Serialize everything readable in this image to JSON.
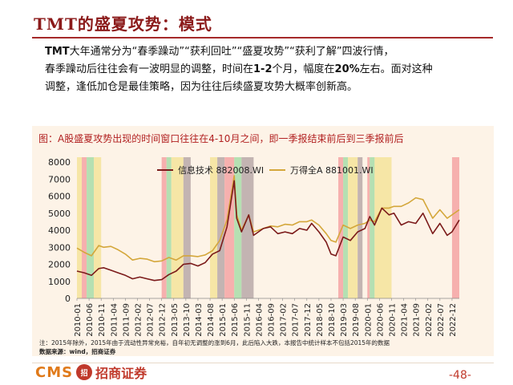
{
  "title": "TMT的盛夏攻势：模式",
  "body": {
    "p1_prefix": "TMT",
    "p1_rest": "大年通常分为“春季躁动”“获利回吐”“盛夏攻势”“获利了解”四波行情，",
    "p2_a": "春季躁动后往往会有一波明显的调整，时间在",
    "p2_b": "1-2",
    "p2_c": "个月，幅度在",
    "p2_d": "20%",
    "p2_e": "左右。面对这种",
    "p3": "调整，逢低加仓是最佳策略，因为往往后续盛夏攻势大概率创新高。"
  },
  "caption": "图：A股盛夏攻势出现的时间窗口往往在4-10月之间，即一季报结束前后到三季报前后",
  "footnote": "注：2015年除外，2015年由于流动性异常充裕，自年初无调整的涨到6月，此后陷入大跌，本报告中统计样本不包括2015年的数据",
  "source": "数据来源：wind，招商证券",
  "logo": {
    "brand": "CMS",
    "mark": "招",
    "name": "招商证券"
  },
  "page_number": "-48-",
  "colors": {
    "series1": "#7b1a1a",
    "series2": "#d4a73b",
    "band_red": "#f4a3a3",
    "band_green": "#a8dca8",
    "band_yellow": "#f5e39a",
    "band_gray": "#b8a8a8",
    "background": "#fdf3e7"
  },
  "chart_data": {
    "type": "line",
    "ylim": [
      0,
      8000
    ],
    "yticks": [
      0,
      1000,
      2000,
      3000,
      4000,
      5000,
      6000,
      7000,
      8000
    ],
    "xticks": [
      "2010-01",
      "2010-06",
      "2010-11",
      "2011-04",
      "2011-09",
      "2012-02",
      "2012-07",
      "2012-12",
      "2013-05",
      "2013-10",
      "2014-03",
      "2014-08",
      "2015-01",
      "2015-06",
      "2015-11",
      "2016-04",
      "2016-09",
      "2017-02",
      "2017-07",
      "2017-12",
      "2018-05",
      "2018-10",
      "2019-03",
      "2019-08",
      "2020-01",
      "2020-06",
      "2020-11",
      "2021-04",
      "2021-09",
      "2022-02",
      "2022-07",
      "2022-12"
    ],
    "legend": [
      "信息技术 882008.WI",
      "万得全A 881001.WI"
    ],
    "legend_position": "top",
    "series": [
      {
        "name": "信息技术 882008.WI",
        "points": [
          [
            "2010-01",
            1600
          ],
          [
            "2010-04",
            1500
          ],
          [
            "2010-07",
            1350
          ],
          [
            "2010-10",
            1750
          ],
          [
            "2010-12",
            1800
          ],
          [
            "2011-03",
            1650
          ],
          [
            "2011-06",
            1500
          ],
          [
            "2011-09",
            1350
          ],
          [
            "2011-12",
            1150
          ],
          [
            "2012-03",
            1250
          ],
          [
            "2012-06",
            1150
          ],
          [
            "2012-09",
            1050
          ],
          [
            "2012-12",
            1100
          ],
          [
            "2013-03",
            1400
          ],
          [
            "2013-06",
            1600
          ],
          [
            "2013-09",
            2000
          ],
          [
            "2013-12",
            2050
          ],
          [
            "2014-03",
            1900
          ],
          [
            "2014-06",
            2100
          ],
          [
            "2014-09",
            2600
          ],
          [
            "2014-12",
            2800
          ],
          [
            "2015-03",
            4200
          ],
          [
            "2015-06",
            6900
          ],
          [
            "2015-07",
            4700
          ],
          [
            "2015-09",
            3900
          ],
          [
            "2015-12",
            4900
          ],
          [
            "2016-02",
            3700
          ],
          [
            "2016-06",
            4100
          ],
          [
            "2016-09",
            4200
          ],
          [
            "2016-12",
            3800
          ],
          [
            "2017-03",
            3900
          ],
          [
            "2017-06",
            3800
          ],
          [
            "2017-09",
            4100
          ],
          [
            "2017-12",
            4000
          ],
          [
            "2018-02",
            4400
          ],
          [
            "2018-05",
            3900
          ],
          [
            "2018-08",
            3300
          ],
          [
            "2018-10",
            2600
          ],
          [
            "2018-12",
            2500
          ],
          [
            "2019-03",
            3600
          ],
          [
            "2019-06",
            3400
          ],
          [
            "2019-09",
            3900
          ],
          [
            "2019-12",
            4100
          ],
          [
            "2020-02",
            4800
          ],
          [
            "2020-04",
            4300
          ],
          [
            "2020-07",
            5300
          ],
          [
            "2020-10",
            4900
          ],
          [
            "2020-12",
            5000
          ],
          [
            "2021-03",
            4300
          ],
          [
            "2021-06",
            4500
          ],
          [
            "2021-09",
            4400
          ],
          [
            "2021-12",
            5000
          ],
          [
            "2022-04",
            3800
          ],
          [
            "2022-07",
            4400
          ],
          [
            "2022-10",
            3700
          ],
          [
            "2022-12",
            3900
          ],
          [
            "2023-03",
            4600
          ]
        ]
      },
      {
        "name": "万得全A 881001.WI",
        "points": [
          [
            "2010-01",
            2950
          ],
          [
            "2010-04",
            2700
          ],
          [
            "2010-07",
            2500
          ],
          [
            "2010-10",
            3100
          ],
          [
            "2010-12",
            3000
          ],
          [
            "2011-03",
            3050
          ],
          [
            "2011-06",
            2850
          ],
          [
            "2011-09",
            2600
          ],
          [
            "2011-12",
            2250
          ],
          [
            "2012-03",
            2350
          ],
          [
            "2012-06",
            2300
          ],
          [
            "2012-09",
            2150
          ],
          [
            "2012-12",
            2200
          ],
          [
            "2013-03",
            2400
          ],
          [
            "2013-06",
            2250
          ],
          [
            "2013-09",
            2500
          ],
          [
            "2013-12",
            2500
          ],
          [
            "2014-03",
            2450
          ],
          [
            "2014-06",
            2550
          ],
          [
            "2014-09",
            2800
          ],
          [
            "2014-12",
            3400
          ],
          [
            "2015-03",
            4600
          ],
          [
            "2015-06",
            7200
          ],
          [
            "2015-07",
            4900
          ],
          [
            "2015-09",
            4000
          ],
          [
            "2015-12",
            4900
          ],
          [
            "2016-02",
            3900
          ],
          [
            "2016-06",
            4100
          ],
          [
            "2016-09",
            4250
          ],
          [
            "2016-12",
            4200
          ],
          [
            "2017-03",
            4350
          ],
          [
            "2017-06",
            4300
          ],
          [
            "2017-09",
            4500
          ],
          [
            "2017-12",
            4500
          ],
          [
            "2018-02",
            4600
          ],
          [
            "2018-05",
            4300
          ],
          [
            "2018-08",
            3800
          ],
          [
            "2018-10",
            3400
          ],
          [
            "2018-12",
            3300
          ],
          [
            "2019-03",
            4300
          ],
          [
            "2019-06",
            4100
          ],
          [
            "2019-09",
            4300
          ],
          [
            "2019-12",
            4400
          ],
          [
            "2020-02",
            4600
          ],
          [
            "2020-04",
            4500
          ],
          [
            "2020-07",
            5300
          ],
          [
            "2020-10",
            5300
          ],
          [
            "2020-12",
            5400
          ],
          [
            "2021-03",
            5400
          ],
          [
            "2021-06",
            5600
          ],
          [
            "2021-09",
            5900
          ],
          [
            "2021-12",
            5800
          ],
          [
            "2022-04",
            4700
          ],
          [
            "2022-07",
            5200
          ],
          [
            "2022-10",
            4700
          ],
          [
            "2022-12",
            4900
          ],
          [
            "2023-03",
            5200
          ]
        ]
      }
    ],
    "shaded_periods": [
      {
        "start": "2010-01",
        "end": "2010-03",
        "kind": "yellow"
      },
      {
        "start": "2010-03",
        "end": "2010-05",
        "kind": "red"
      },
      {
        "start": "2010-05",
        "end": "2010-08",
        "kind": "green"
      },
      {
        "start": "2010-08",
        "end": "2010-11",
        "kind": "yellow"
      },
      {
        "start": "2012-12",
        "end": "2013-02",
        "kind": "red"
      },
      {
        "start": "2013-02",
        "end": "2013-04",
        "kind": "green"
      },
      {
        "start": "2013-04",
        "end": "2013-09",
        "kind": "yellow"
      },
      {
        "start": "2013-09",
        "end": "2013-12",
        "kind": "gray"
      },
      {
        "start": "2014-08",
        "end": "2014-11",
        "kind": "yellow"
      },
      {
        "start": "2014-11",
        "end": "2015-02",
        "kind": "gray"
      },
      {
        "start": "2015-02",
        "end": "2015-06",
        "kind": "red"
      },
      {
        "start": "2015-06",
        "end": "2015-09",
        "kind": "green"
      },
      {
        "start": "2015-09",
        "end": "2016-02",
        "kind": "gray"
      },
      {
        "start": "2019-01",
        "end": "2019-03",
        "kind": "red"
      },
      {
        "start": "2019-03",
        "end": "2019-05",
        "kind": "green"
      },
      {
        "start": "2019-05",
        "end": "2019-09",
        "kind": "yellow"
      },
      {
        "start": "2019-09",
        "end": "2019-11",
        "kind": "gray"
      },
      {
        "start": "2020-01",
        "end": "2020-02",
        "kind": "red"
      },
      {
        "start": "2020-02",
        "end": "2020-04",
        "kind": "green"
      },
      {
        "start": "2020-04",
        "end": "2020-11",
        "kind": "yellow"
      },
      {
        "start": "2022-12",
        "end": "2023-03",
        "kind": "red"
      }
    ]
  }
}
